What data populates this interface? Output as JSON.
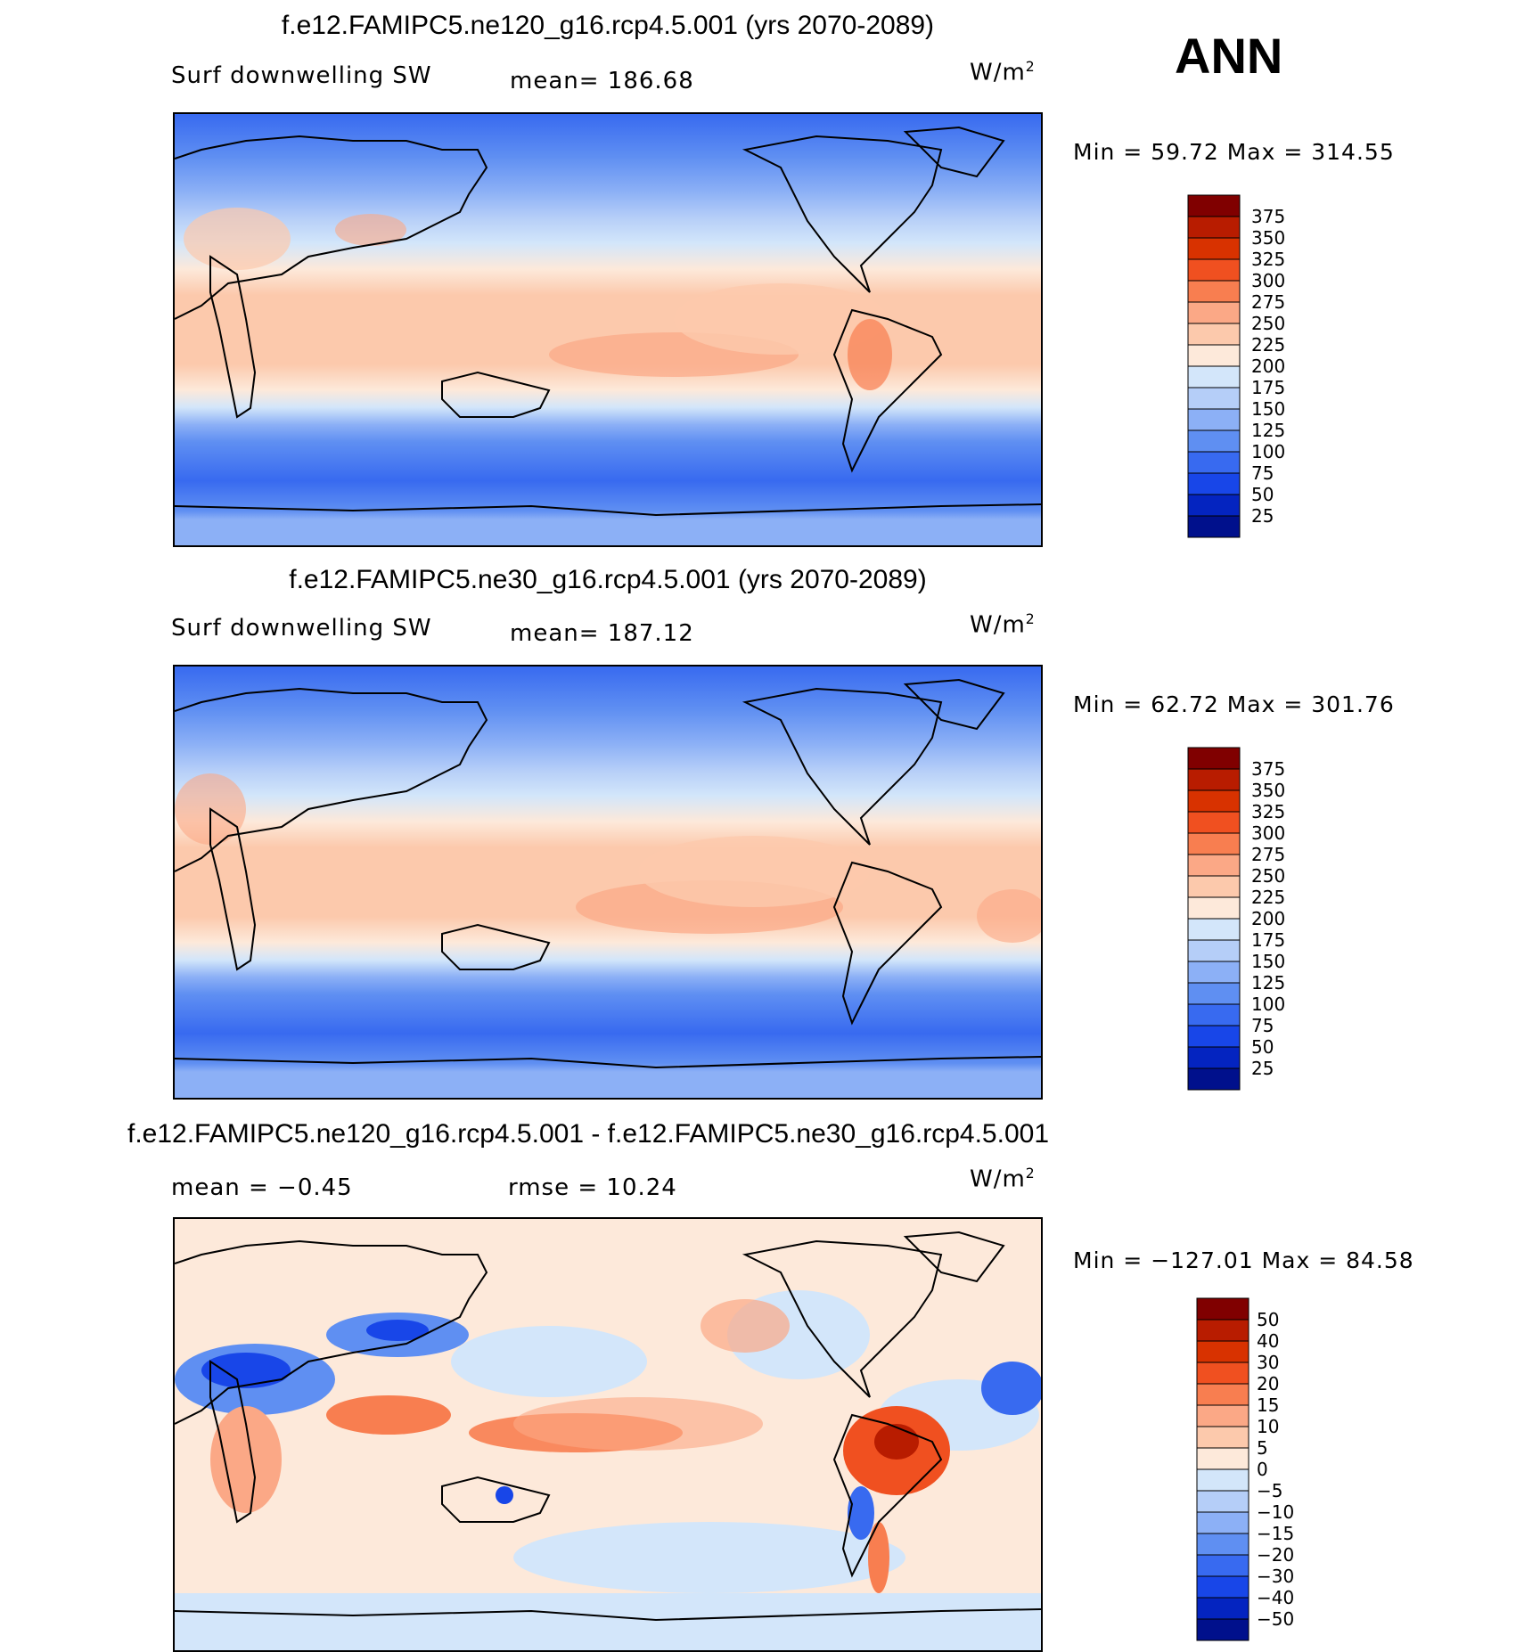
{
  "season": "ANN",
  "panels": [
    {
      "title": "f.e12.FAMIPC5.ne120_g16.rcp4.5.001 (yrs 2070-2089)",
      "variable": "Surf downwelling SW",
      "stat": "mean=  186.68",
      "units": "W/m",
      "units_exp": "2",
      "minmax": "Min =   59.72  Max  =  314.55",
      "colorbar_labels": [
        "375",
        "350",
        "325",
        "300",
        "275",
        "250",
        "225",
        "200",
        "175",
        "150",
        "125",
        "100",
        "75",
        "50",
        "25"
      ],
      "colorbar_colors": [
        "#800000",
        "#b81c00",
        "#d83200",
        "#f05020",
        "#f87e50",
        "#fba886",
        "#fcc9ac",
        "#fde9da",
        "#d3e6fa",
        "#b5cef8",
        "#8cb0f6",
        "#5f8ff2",
        "#386af0",
        "#1846e8",
        "#0424c0",
        "#00108c"
      ]
    },
    {
      "title": "f.e12.FAMIPC5.ne30_g16.rcp4.5.001 (yrs 2070-2089)",
      "variable": "Surf downwelling SW",
      "stat": "mean=  187.12",
      "units": "W/m",
      "units_exp": "2",
      "minmax": "Min =   62.72  Max  =  301.76",
      "colorbar_labels": [
        "375",
        "350",
        "325",
        "300",
        "275",
        "250",
        "225",
        "200",
        "175",
        "150",
        "125",
        "100",
        "75",
        "50",
        "25"
      ],
      "colorbar_colors": [
        "#800000",
        "#b81c00",
        "#d83200",
        "#f05020",
        "#f87e50",
        "#fba886",
        "#fcc9ac",
        "#fde9da",
        "#d3e6fa",
        "#b5cef8",
        "#8cb0f6",
        "#5f8ff2",
        "#386af0",
        "#1846e8",
        "#0424c0",
        "#00108c"
      ]
    },
    {
      "title": "f.e12.FAMIPC5.ne120_g16.rcp4.5.001 - f.e12.FAMIPC5.ne30_g16.rcp4.5.001",
      "mean": "mean  =    −0.45",
      "rmse": "rmse  =    10.24",
      "units": "W/m",
      "units_exp": "2",
      "minmax": "Min  = −127.01  Max  =    84.58",
      "colorbar_labels": [
        "50",
        "40",
        "30",
        "20",
        "15",
        "10",
        "5",
        "0",
        "−5",
        "−10",
        "−15",
        "−20",
        "−30",
        "−40",
        "−50"
      ],
      "colorbar_colors": [
        "#800000",
        "#b81c00",
        "#d83200",
        "#f05020",
        "#f87e50",
        "#fba886",
        "#fcc9ac",
        "#fde9da",
        "#d3e6fa",
        "#b5cef8",
        "#8cb0f6",
        "#5f8ff2",
        "#386af0",
        "#1846e8",
        "#0424c0",
        "#00108c"
      ]
    }
  ],
  "chart_data": [
    {
      "type": "heatmap",
      "title": "f.e12.FAMIPC5.ne120_g16.rcp4.5.001 (yrs 2070-2089)",
      "subtitle": "Surf downwelling SW",
      "units": "W/m2",
      "mean": 186.68,
      "min": 59.72,
      "max": 314.55,
      "levels": [
        25,
        50,
        75,
        100,
        125,
        150,
        175,
        200,
        225,
        250,
        275,
        300,
        325,
        350,
        375
      ]
    },
    {
      "type": "heatmap",
      "title": "f.e12.FAMIPC5.ne30_g16.rcp4.5.001 (yrs 2070-2089)",
      "subtitle": "Surf downwelling SW",
      "units": "W/m2",
      "mean": 187.12,
      "min": 62.72,
      "max": 301.76,
      "levels": [
        25,
        50,
        75,
        100,
        125,
        150,
        175,
        200,
        225,
        250,
        275,
        300,
        325,
        350,
        375
      ]
    },
    {
      "type": "heatmap",
      "title": "f.e12.FAMIPC5.ne120_g16.rcp4.5.001 - f.e12.FAMIPC5.ne30_g16.rcp4.5.001",
      "units": "W/m2",
      "mean": -0.45,
      "rmse": 10.24,
      "min": -127.01,
      "max": 84.58,
      "levels": [
        -50,
        -40,
        -30,
        -20,
        -15,
        -10,
        -5,
        0,
        5,
        10,
        15,
        20,
        30,
        40,
        50
      ]
    }
  ]
}
